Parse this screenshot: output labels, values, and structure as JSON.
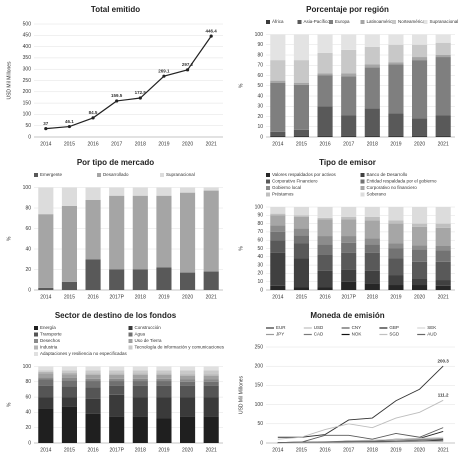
{
  "chart_data": [
    {
      "type": "line",
      "title": "Total emitido",
      "ylabel": "USD Mil Millones",
      "categories": [
        "2014",
        "2015",
        "2016",
        "2017",
        "2018",
        "2019",
        "2020",
        "2021"
      ],
      "series": [
        {
          "name": "Total",
          "color": "#222222",
          "values": [
            37,
            46.1,
            84.5,
            159.5,
            172.5,
            269.1,
            297.2,
            446.4
          ]
        }
      ],
      "ylim": [
        0,
        500
      ],
      "yticks": [
        0,
        50,
        100,
        150,
        200,
        250,
        300,
        350,
        400,
        450,
        500
      ],
      "markers": true,
      "data_labels": true,
      "legend": false,
      "grid": true
    },
    {
      "type": "stacked_bar",
      "title": "Porcentaje por región",
      "ylabel": "%",
      "categories": [
        "2014",
        "2015",
        "2016",
        "2017",
        "2018",
        "2019",
        "2020",
        "2021"
      ],
      "series": [
        {
          "name": "África",
          "color": "#3a3a3a",
          "values": [
            1,
            1,
            1,
            1,
            1,
            1,
            1,
            1
          ]
        },
        {
          "name": "Asia-Pacífico",
          "color": "#595959",
          "values": [
            4,
            6,
            29,
            20,
            27,
            22,
            17,
            20
          ]
        },
        {
          "name": "Europa",
          "color": "#7f7f7f",
          "values": [
            48,
            44,
            30,
            38,
            40,
            48,
            57,
            57
          ]
        },
        {
          "name": "Latinoamérica",
          "color": "#a5a5a5",
          "values": [
            2,
            2,
            2,
            3,
            3,
            2,
            3,
            2
          ]
        },
        {
          "name": "Norteamérica",
          "color": "#c8c8c8",
          "values": [
            20,
            22,
            20,
            23,
            17,
            17,
            12,
            12
          ]
        },
        {
          "name": "Supranacional",
          "color": "#e3e3e3",
          "values": [
            25,
            25,
            18,
            15,
            12,
            10,
            10,
            8
          ]
        }
      ],
      "ylim": [
        0,
        100
      ],
      "yticks": [
        0,
        10,
        20,
        30,
        40,
        50,
        60,
        70,
        80,
        90,
        100
      ],
      "legend": true,
      "grid": true
    },
    {
      "type": "stacked_bar",
      "title": "Por tipo de mercado",
      "ylabel": "%",
      "categories": [
        "2014",
        "2015",
        "2016",
        "2017P",
        "2018",
        "2019",
        "2020",
        "2021"
      ],
      "series": [
        {
          "name": "Emergente",
          "color": "#595959",
          "values": [
            2,
            8,
            30,
            20,
            20,
            22,
            17,
            18
          ]
        },
        {
          "name": "Desarrollado",
          "color": "#a5a5a5",
          "values": [
            72,
            74,
            58,
            72,
            72,
            70,
            78,
            79
          ]
        },
        {
          "name": "Supranacional",
          "color": "#dcdcdc",
          "values": [
            26,
            18,
            12,
            8,
            8,
            8,
            5,
            3
          ]
        }
      ],
      "ylim": [
        0,
        100
      ],
      "yticks": [
        0,
        20,
        40,
        60,
        80,
        100
      ],
      "legend": true,
      "grid": true
    },
    {
      "type": "stacked_bar",
      "title": "Tipo de emisor",
      "ylabel": "%",
      "categories": [
        "2014",
        "2015",
        "2016",
        "2017P",
        "2018",
        "2019",
        "2020",
        "2021"
      ],
      "series": [
        {
          "name": "Valores respaldados por activos",
          "color": "#262626",
          "values": [
            5,
            3,
            3,
            10,
            8,
            6,
            6,
            5
          ]
        },
        {
          "name": "Banco de Desarrollo",
          "color": "#404040",
          "values": [
            40,
            35,
            20,
            15,
            15,
            12,
            8,
            7
          ]
        },
        {
          "name": "Corporativo Financiero",
          "color": "#595959",
          "values": [
            15,
            18,
            20,
            20,
            22,
            20,
            20,
            22
          ]
        },
        {
          "name": "Entidad respaldada por el gobierno",
          "color": "#737373",
          "values": [
            10,
            10,
            12,
            12,
            10,
            12,
            15,
            14
          ]
        },
        {
          "name": "Gobierno local",
          "color": "#8c8c8c",
          "values": [
            8,
            8,
            10,
            8,
            7,
            6,
            5,
            5
          ]
        },
        {
          "name": "Corporativo no financiero",
          "color": "#a6a6a6",
          "values": [
            12,
            14,
            20,
            20,
            22,
            24,
            22,
            22
          ]
        },
        {
          "name": "Préstamos",
          "color": "#bfbfbf",
          "values": [
            2,
            2,
            2,
            3,
            4,
            4,
            4,
            5
          ]
        },
        {
          "name": "Soberano",
          "color": "#dcdcdc",
          "values": [
            8,
            10,
            13,
            12,
            12,
            16,
            20,
            20
          ]
        }
      ],
      "ylim": [
        0,
        100
      ],
      "yticks": [
        0,
        10,
        20,
        30,
        40,
        50,
        60,
        70,
        80,
        90,
        100
      ],
      "legend": true,
      "grid": true
    },
    {
      "type": "stacked_bar",
      "title": "Sector de destino de los fondos",
      "ylabel": "%",
      "categories": [
        "2014",
        "2015",
        "2016",
        "2017P",
        "2018",
        "2019",
        "2020",
        "2021"
      ],
      "series": [
        {
          "name": "Energía",
          "color": "#1f1f1f",
          "values": [
            45,
            48,
            38,
            35,
            35,
            32,
            35,
            35
          ]
        },
        {
          "name": "Construcción",
          "color": "#3a3a3a",
          "values": [
            15,
            12,
            20,
            28,
            25,
            28,
            25,
            25
          ]
        },
        {
          "name": "Transporte",
          "color": "#555555",
          "values": [
            15,
            14,
            15,
            12,
            15,
            15,
            15,
            15
          ]
        },
        {
          "name": "Agua",
          "color": "#707070",
          "values": [
            8,
            8,
            8,
            6,
            6,
            6,
            5,
            5
          ]
        },
        {
          "name": "Desechos",
          "color": "#8a8a8a",
          "values": [
            3,
            3,
            3,
            3,
            3,
            3,
            3,
            3
          ]
        },
        {
          "name": "Uso de Tierra",
          "color": "#a0a0a0",
          "values": [
            5,
            5,
            5,
            5,
            5,
            5,
            5,
            5
          ]
        },
        {
          "name": "Industria",
          "color": "#b5b5b5",
          "values": [
            2,
            2,
            2,
            2,
            2,
            2,
            2,
            2
          ]
        },
        {
          "name": "Tecnología de información y comunicaciones",
          "color": "#c9c9c9",
          "values": [
            2,
            3,
            4,
            4,
            4,
            4,
            5,
            5
          ]
        },
        {
          "name": "Adaptaciones y resiliencia no especificadas",
          "color": "#e0e0e0",
          "values": [
            5,
            5,
            5,
            5,
            5,
            5,
            5,
            5
          ]
        }
      ],
      "ylim": [
        0,
        100
      ],
      "yticks": [
        0,
        20,
        40,
        60,
        80,
        100
      ],
      "legend": true,
      "grid": true
    },
    {
      "type": "line",
      "title": "Moneda de emisión",
      "ylabel": "USD Mil Millones",
      "categories": [
        "2014",
        "2015",
        "2016",
        "2017",
        "2018",
        "2019",
        "2020",
        "2021"
      ],
      "series": [
        {
          "name": "EUR",
          "color": "#333333",
          "values": [
            15,
            15,
            22,
            60,
            65,
            110,
            140,
            200.3
          ],
          "label_last": true
        },
        {
          "name": "USD",
          "color": "#bdbdbd",
          "values": [
            10,
            15,
            35,
            50,
            40,
            65,
            80,
            111.2
          ],
          "label_last": true
        },
        {
          "name": "CNY",
          "color": "#5a5a5a",
          "values": [
            1,
            2,
            20,
            20,
            10,
            25,
            15,
            40
          ]
        },
        {
          "name": "GBP",
          "color": "#222222",
          "values": [
            1,
            2,
            1,
            5,
            5,
            10,
            12,
            30
          ]
        },
        {
          "name": "SEK",
          "color": "#d5d5d5",
          "values": [
            0,
            1,
            2,
            5,
            8,
            10,
            12,
            15
          ]
        },
        {
          "name": "JPY",
          "color": "#9a9a9a",
          "values": [
            0,
            0,
            1,
            3,
            5,
            8,
            10,
            12
          ]
        },
        {
          "name": "CAD",
          "color": "#7a7a7a",
          "values": [
            1,
            2,
            3,
            5,
            5,
            5,
            8,
            10
          ]
        },
        {
          "name": "NOK",
          "color": "#111111",
          "values": [
            0,
            0,
            1,
            2,
            3,
            4,
            5,
            8
          ]
        },
        {
          "name": "SGD",
          "color": "#c0c0c0",
          "values": [
            0,
            0,
            0,
            1,
            2,
            3,
            4,
            6
          ]
        },
        {
          "name": "AUD",
          "color": "#666666",
          "values": [
            1,
            2,
            2,
            3,
            3,
            4,
            5,
            5
          ]
        }
      ],
      "ylim": [
        0,
        250
      ],
      "yticks": [
        0,
        50,
        100,
        150,
        200,
        250
      ],
      "legend": true,
      "grid": true
    }
  ]
}
